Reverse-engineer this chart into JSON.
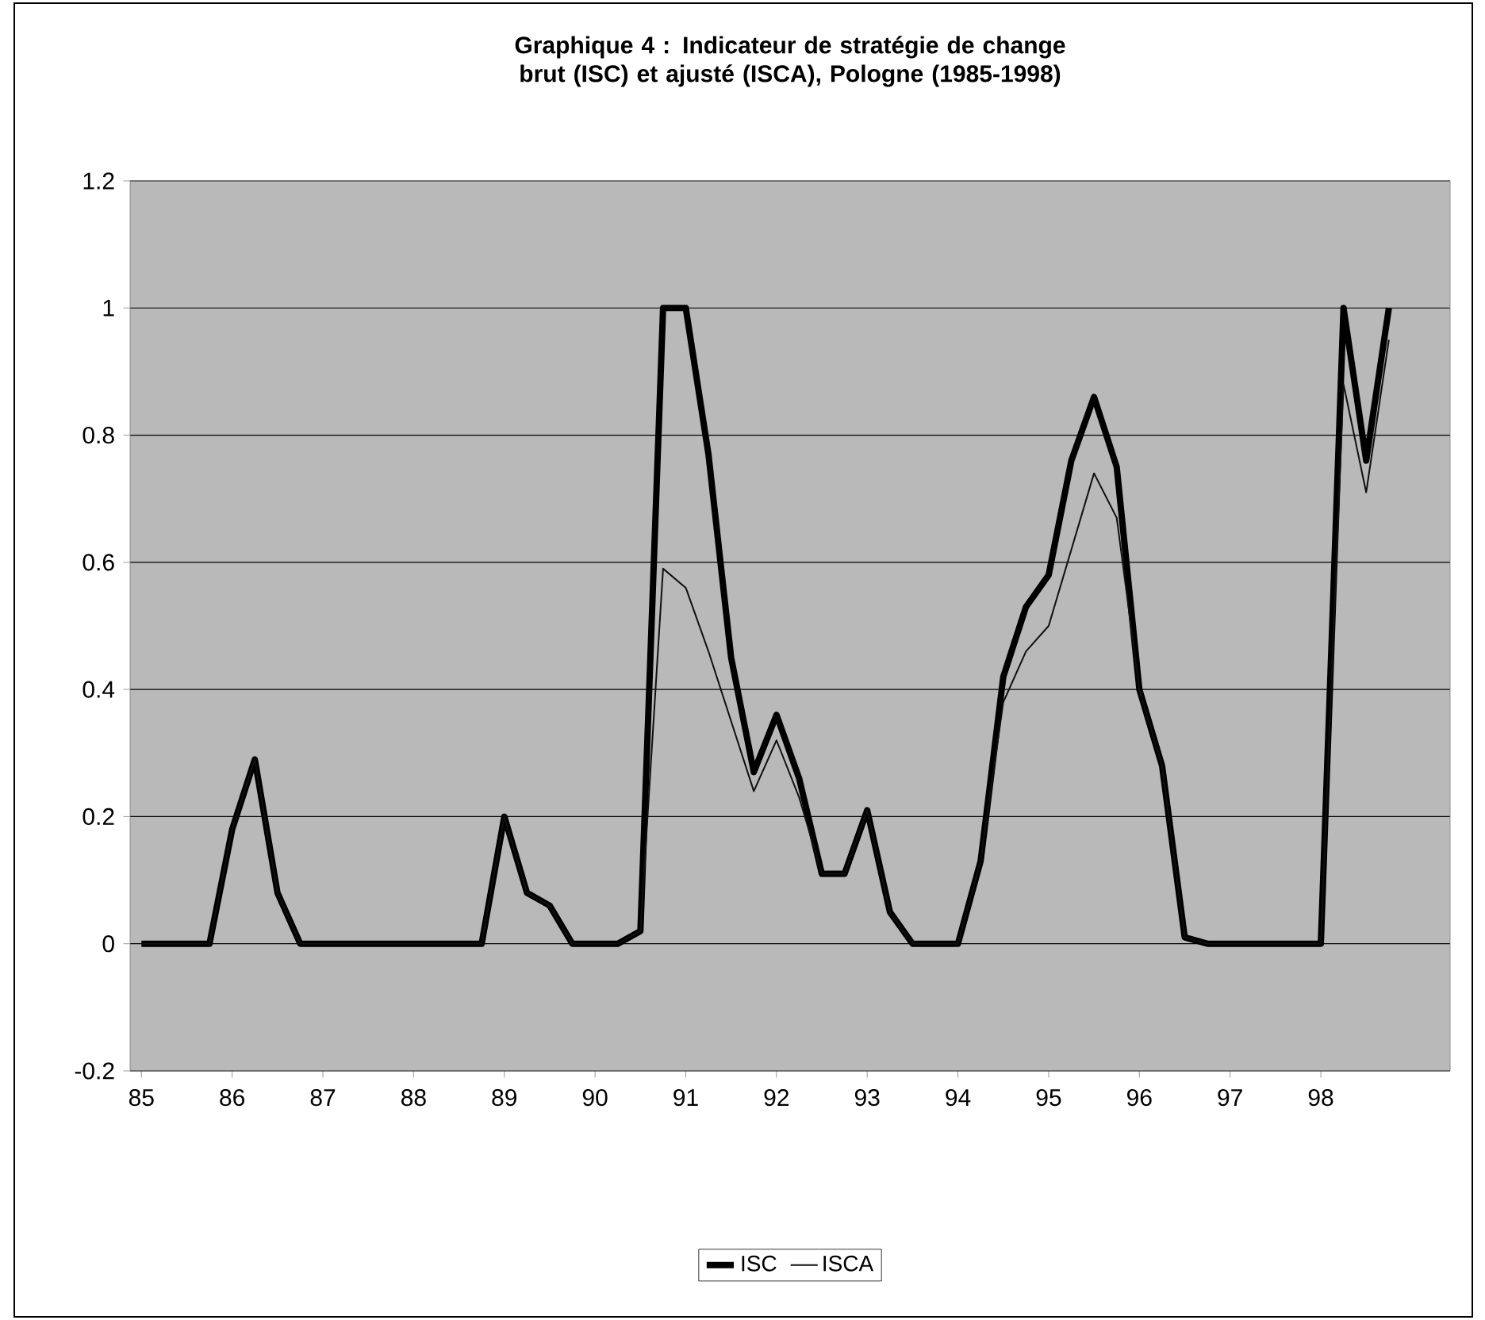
{
  "chart_data": {
    "type": "line",
    "title": "Graphique 4 : Indicateur de stratégie de change brut (ISC) et ajusté (ISCA), Pologne (1985-1998)",
    "categories": [
      "85",
      null,
      null,
      null,
      "86",
      null,
      null,
      null,
      "87",
      null,
      null,
      null,
      "88",
      null,
      null,
      null,
      "89",
      null,
      null,
      null,
      "90",
      null,
      null,
      null,
      "91",
      null,
      null,
      null,
      "92",
      null,
      null,
      null,
      "93",
      null,
      null,
      null,
      "94",
      null,
      null,
      null,
      "95",
      null,
      null,
      null,
      "96",
      null,
      null,
      null,
      "97",
      null,
      null,
      null,
      "98",
      null,
      null,
      null
    ],
    "series": [
      {
        "name": "ISC",
        "color": "#000000",
        "values": [
          0,
          0,
          0,
          0,
          0.18,
          0.29,
          0.08,
          0,
          0,
          0,
          0,
          0,
          0,
          0,
          0,
          0,
          0.2,
          0.08,
          0.06,
          0,
          0,
          0,
          0.02,
          1.0,
          1.0,
          0.77,
          0.45,
          0.27,
          0.36,
          0.26,
          0.11,
          0.11,
          0.21,
          0.05,
          0,
          0,
          0,
          0.13,
          0.42,
          0.53,
          0.58,
          0.76,
          0.86,
          0.75,
          0.4,
          0.28,
          0.01,
          0,
          0,
          0,
          0,
          0,
          0,
          1.0,
          0.76,
          1.0
        ]
      },
      {
        "name": "ISCA",
        "color": "#101010",
        "values": [
          0,
          0,
          0,
          0,
          0.18,
          0.29,
          0.08,
          0,
          0,
          0,
          0,
          0,
          0,
          0,
          0,
          0,
          0.2,
          0.08,
          0.06,
          0,
          0,
          0,
          0.02,
          0.59,
          0.56,
          0.46,
          0.35,
          0.24,
          0.32,
          0.23,
          0.11,
          0.11,
          0.21,
          0.05,
          0,
          0,
          0,
          0.13,
          0.38,
          0.46,
          0.5,
          0.62,
          0.74,
          0.67,
          0.4,
          0.28,
          0.01,
          0,
          0,
          0,
          0,
          0,
          0,
          0.88,
          0.71,
          0.95
        ]
      }
    ],
    "ylim": [
      -0.2,
      1.2
    ],
    "yticks": [
      -0.2,
      0,
      0.2,
      0.4,
      0.6,
      0.8,
      1,
      1.2
    ],
    "grid": "y",
    "legend": "bottom",
    "marker": "none",
    "line_style": "solid"
  }
}
